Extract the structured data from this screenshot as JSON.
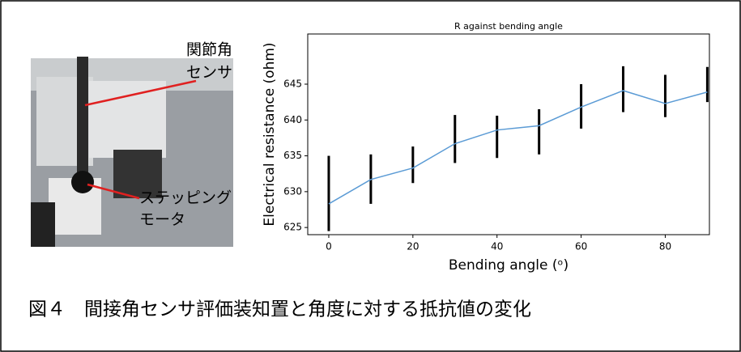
{
  "photo": {
    "sensor_label": [
      "関節角",
      "センサ"
    ],
    "motor_label": [
      "ステッピング",
      "モータ"
    ]
  },
  "chart_data": {
    "type": "line",
    "title": "R against bending angle",
    "x_label": "Bending angle (ᵒ)",
    "y_label": "Electrical resistance (ohm)",
    "x": [
      0,
      10,
      20,
      30,
      40,
      50,
      60,
      70,
      80,
      90
    ],
    "values": [
      628.3,
      631.7,
      633.3,
      636.7,
      638.6,
      639.2,
      641.8,
      644.1,
      642.3,
      643.9
    ],
    "spread_min": [
      624.5,
      628.3,
      631.2,
      634,
      634.7,
      635.2,
      638.8,
      641.1,
      640.4,
      642.5
    ],
    "spread_max": [
      635,
      635.2,
      636.3,
      640.7,
      640.6,
      641.5,
      645,
      647.5,
      646.3,
      647.4
    ],
    "color": "#5b9bd5",
    "point_color": "#000000",
    "xlim": [
      -5,
      90.5
    ],
    "ylim": [
      624,
      652
    ],
    "xticks": [
      0,
      20,
      40,
      60,
      80
    ],
    "yticks": [
      625,
      630,
      635,
      640,
      645
    ]
  },
  "caption": "図４　間接角センサ評価装知置と角度に対する抵抗値の変化"
}
